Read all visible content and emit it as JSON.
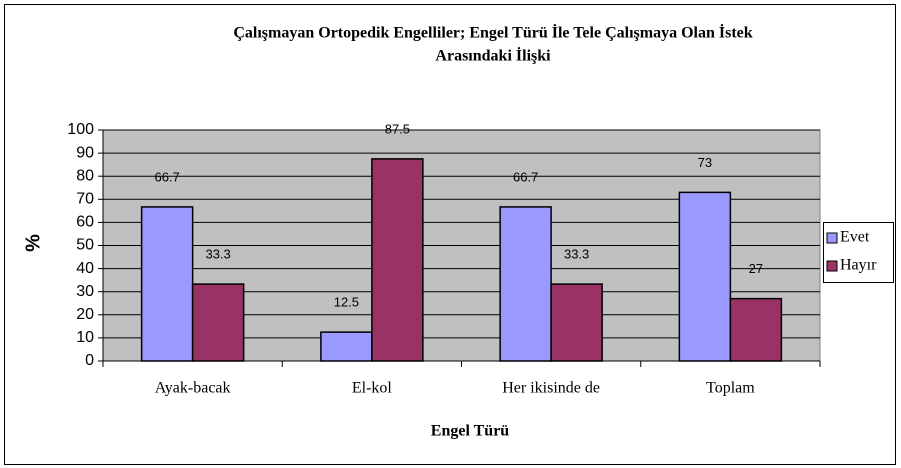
{
  "chart_data": {
    "type": "bar",
    "title": [
      "Çalışmayan Ortopedik Engelliler; Engel Türü İle Tele Çalışmaya Olan İstek",
      "Arasındaki İlişki"
    ],
    "x_label": "Engel Türü",
    "y_label": "%",
    "categories": [
      "Ayak-bacak",
      "El-kol",
      "Her ikisinde de",
      "Toplam"
    ],
    "series": [
      {
        "name": "Evet",
        "color": "#9999ff",
        "values": [
          66.7,
          12.5,
          66.7,
          73
        ]
      },
      {
        "name": "Hayır",
        "color": "#993366",
        "values": [
          33.3,
          87.5,
          33.3,
          27
        ]
      }
    ],
    "ylim": [
      0,
      100
    ],
    "yticks": [
      0,
      10,
      20,
      30,
      40,
      50,
      60,
      70,
      80,
      90,
      100
    ],
    "grid": true,
    "legend": "right",
    "plot_background": "#c0c0c0"
  }
}
